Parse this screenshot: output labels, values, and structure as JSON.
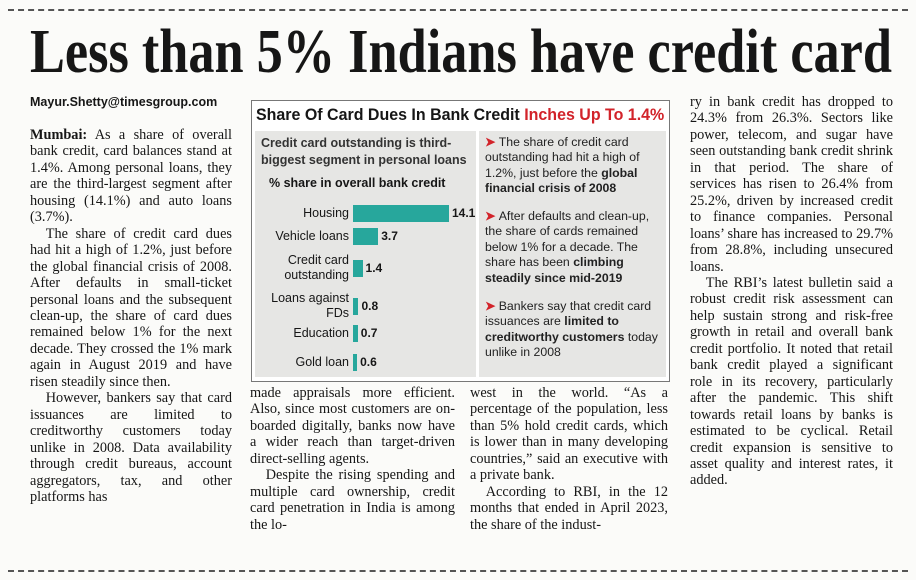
{
  "header": {
    "title": "Less than 5% Indians have credit card",
    "byline": "Mayur.Shetty@timesgroup.com"
  },
  "columns": [
    {
      "paragraphs": [
        {
          "lead": "Mumbai:",
          "text": "As a share of overall bank credit, card balances stand at 1.4%. Among personal loans, they are the third-largest segment after housing (14.1%) and auto loans (3.7%)."
        },
        {
          "text": "The share of credit card dues had hit a high of 1.2%, just before the global financial crisis of 2008. After defaults in small-ticket personal loans and the subsequent clean-up, the share of card dues remained below 1% for the next decade. They crossed the 1% mark again in August 2019 and have risen steadily since then."
        },
        {
          "text": "However, bankers say that card issuances are limited to creditworthy customers today unlike in 2008. Data availability through credit bureaus, account aggregators, tax, and other platforms has"
        }
      ]
    },
    {
      "paragraphs": [
        {
          "text": "made appraisals more efficient. Also, since most customers are on-boarded digitally, banks now have a wider reach than target-driven direct-selling agents."
        },
        {
          "text": "Despite the rising spending and multiple card ownership, credit card penetration in India is among the lo-"
        }
      ]
    },
    {
      "paragraphs": [
        {
          "text": "west in the world. “As a percentage of the population, less than 5% hold credit cards, which is lower than in many developing countries,” said an executive with a private bank."
        },
        {
          "text": "According to RBI, in the 12 months that ended in April 2023, the share of the indust-"
        }
      ]
    },
    {
      "paragraphs": [
        {
          "text": "ry in bank credit has dropped to 24.3% from 26.3%. Sectors like power, telecom, and sugar have seen outstanding bank credit shrink in that period. The share of services has risen to 26.4% from 25.2%, driven by increased credit to finance companies. Personal loans’ share has increased to 29.7% from 28.8%, including unsecured loans."
        },
        {
          "text": "The RBI’s latest bulletin said a robust credit risk assessment can help sustain strong and risk-free growth in retail and overall bank credit portfolio. It noted that retail bank credit played a significant role in its recovery, particularly after the pandemic. This shift towards retail loans by banks is estimated to be cyclical. Retail credit expansion is sensitive to asset quality and interest rates, it added."
        }
      ]
    }
  ],
  "chart_data": {
    "type": "bar",
    "orientation": "horizontal",
    "title_parts": [
      "Share Of Card Dues In Bank Credit",
      "Inches Up To 1.4%"
    ],
    "subtitle": "Credit card outstanding is third-biggest segment in personal loans",
    "axis_label": "% share in overall bank credit",
    "categories": [
      "Housing",
      "Vehicle loans",
      "Credit card outstanding",
      "Loans against FDs",
      "Education",
      "Gold loan"
    ],
    "values": [
      14.1,
      3.7,
      1.4,
      0.8,
      0.7,
      0.6
    ],
    "color": "#27a79c",
    "notes": [
      [
        "The share of credit card outstanding had hit a high of 1.2%, just before the ",
        "global financial crisis of 2008"
      ],
      [
        "After defaults and clean-up, the share of cards remained below 1% for a decade. The share has been ",
        "climbing steadily since mid-2019"
      ],
      [
        "Bankers say that credit card issuances are ",
        "limited to creditworthy customers",
        " today unlike in 2008"
      ]
    ]
  }
}
